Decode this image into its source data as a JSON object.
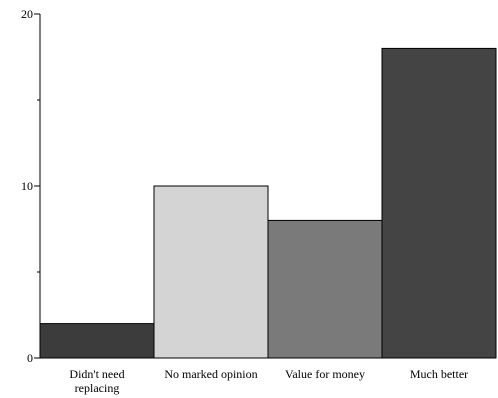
{
  "chart_data": {
    "type": "bar",
    "categories": [
      [
        "Didn't need",
        "replacing"
      ],
      [
        "No marked opinion"
      ],
      [
        "Value for money"
      ],
      [
        "Much better"
      ]
    ],
    "values": [
      2,
      10,
      8,
      18
    ],
    "colors": [
      "#3c3c3c",
      "#d4d4d4",
      "#7a7a7a",
      "#444444"
    ],
    "ylim": [
      0,
      20
    ],
    "yticks_major": [
      0,
      10,
      20
    ],
    "yticks_minor": [
      5,
      15
    ],
    "title": "",
    "xlabel": "",
    "ylabel": "",
    "grid": false
  }
}
